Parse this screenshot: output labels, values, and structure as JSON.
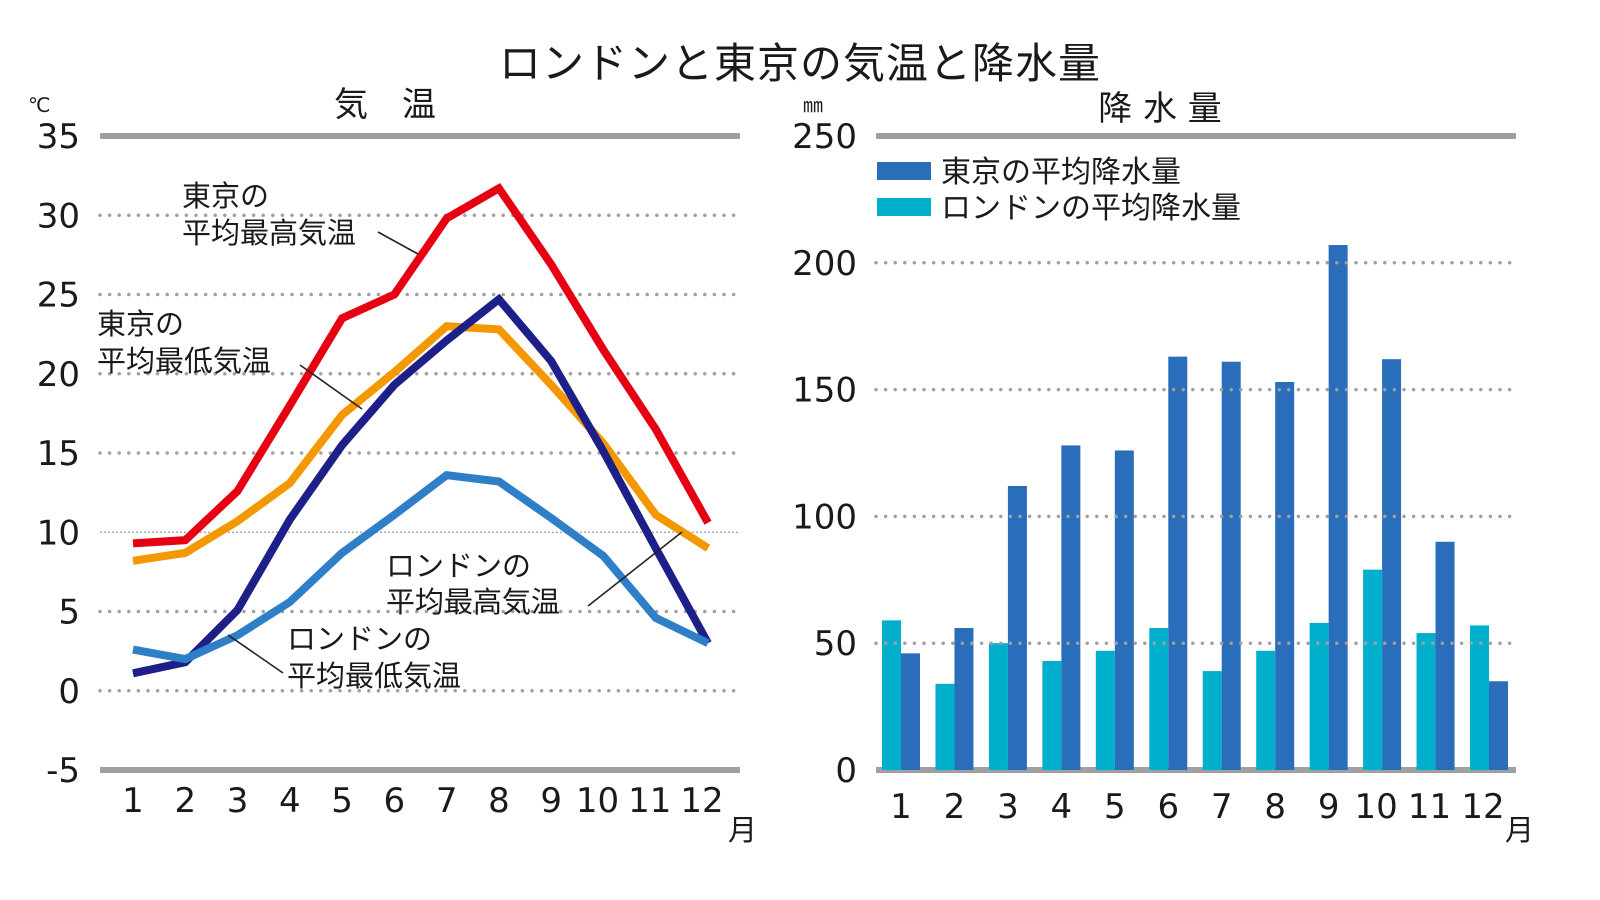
{
  "title": "ロンドンと東京の気温と降水量",
  "chart_data": [
    {
      "type": "line",
      "title": "気　温",
      "ylabel": "℃",
      "xlabel": "月",
      "ylim": [
        -5,
        35
      ],
      "yticks": [
        35,
        30,
        25,
        20,
        15,
        10,
        5,
        0,
        -5
      ],
      "ytick_labels": [
        "35",
        "30",
        "25",
        "20",
        "15",
        "10",
        "5",
        "0",
        "-5"
      ],
      "grid": true,
      "categories": [
        "1",
        "2",
        "3",
        "4",
        "5",
        "6",
        "7",
        "8",
        "9",
        "10",
        "11",
        "12"
      ],
      "series": [
        {
          "name": "東京の平均最高気温",
          "color": "#e60012",
          "values": [
            9.3,
            9.5,
            12.6,
            18.0,
            23.5,
            25.0,
            29.8,
            31.7,
            26.9,
            21.5,
            16.5,
            10.6
          ]
        },
        {
          "name": "東京の平均最低気温",
          "color": "#f39800",
          "values": [
            8.2,
            8.7,
            10.7,
            13.1,
            17.4,
            20.1,
            23.0,
            22.8,
            19.3,
            15.6,
            11.1,
            9.0
          ]
        },
        {
          "name": "ロンドンの平均最高気温",
          "color": "#1d2088",
          "values": [
            1.1,
            1.8,
            5.1,
            10.8,
            15.5,
            19.3,
            22.1,
            24.7,
            20.8,
            15.1,
            9.0,
            3.0
          ]
        },
        {
          "name": "ロンドンの平均最低気温",
          "color": "#2e7fc8",
          "values": [
            2.6,
            2.0,
            3.5,
            5.6,
            8.7,
            11.1,
            13.6,
            13.2,
            10.9,
            8.5,
            4.6,
            3.0
          ]
        }
      ],
      "annotations": [
        {
          "line1": "東京の",
          "line2": "平均最高気温"
        },
        {
          "line1": "東京の",
          "line2": "平均最低気温"
        },
        {
          "line1": "ロンドンの",
          "line2": "平均最高気温"
        },
        {
          "line1": "ロンドンの",
          "line2": "平均最低気温"
        }
      ]
    },
    {
      "type": "bar",
      "title": "降 水 量",
      "ylabel": "㎜",
      "xlabel": "月",
      "ylim": [
        0,
        250
      ],
      "yticks": [
        250,
        200,
        150,
        100,
        50,
        0
      ],
      "ytick_labels": [
        "250",
        "200",
        "150",
        "100",
        "50",
        "0"
      ],
      "grid": true,
      "legend_position": "top-left",
      "categories": [
        "1",
        "2",
        "3",
        "4",
        "5",
        "6",
        "7",
        "8",
        "9",
        "10",
        "11",
        "12"
      ],
      "series": [
        {
          "name": "ロンドンの平均降水量",
          "color": "#00afcc",
          "values": [
            59,
            34,
            50,
            43,
            47,
            56,
            39,
            47,
            58,
            79,
            54,
            57
          ]
        },
        {
          "name": "東京の平均降水量",
          "color": "#2a6ebb",
          "values": [
            46,
            56,
            112,
            128,
            126,
            163,
            161,
            153,
            207,
            162,
            90,
            35
          ]
        }
      ],
      "legend": [
        {
          "label": "東京の平均降水量",
          "color": "#2a6ebb"
        },
        {
          "label": "ロンドンの平均降水量",
          "color": "#00afcc"
        }
      ]
    }
  ]
}
